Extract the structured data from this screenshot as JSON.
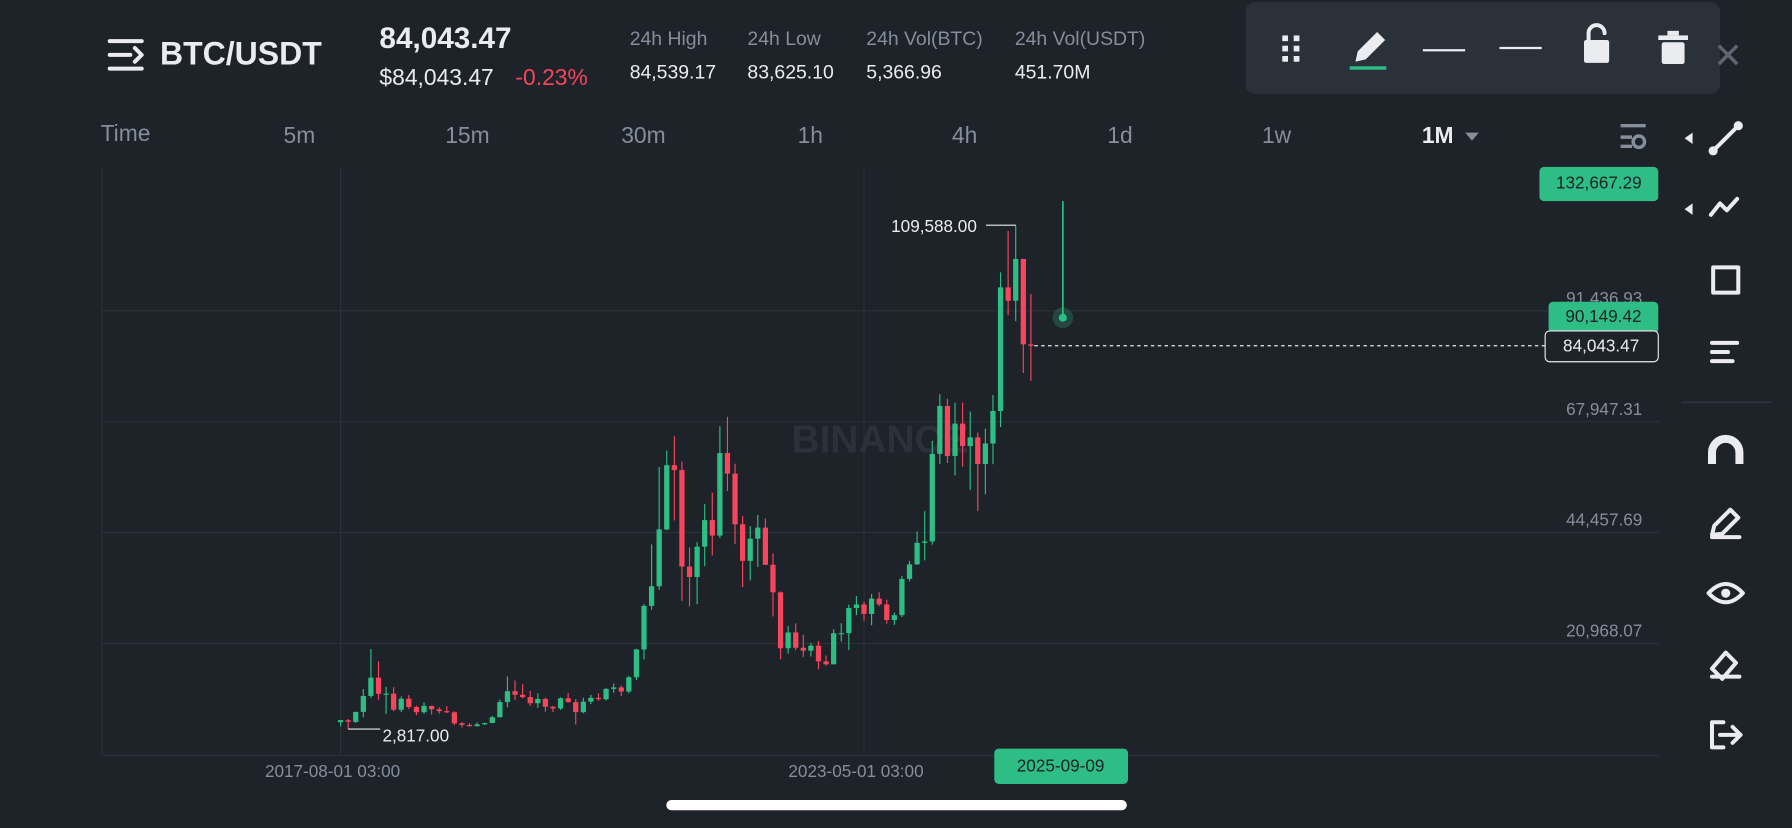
{
  "header": {
    "pair": "BTC/USDT",
    "last_price": "84,043.47",
    "fiat_price": "$84,043.47",
    "change": "-0.23%",
    "stats": [
      {
        "label": "24h High",
        "value": "84,539.17"
      },
      {
        "label": "24h Low",
        "value": "83,625.10"
      },
      {
        "label": "24h Vol(BTC)",
        "value": "5,366.96"
      },
      {
        "label": "24h Vol(USDT)",
        "value": "451.70M"
      }
    ]
  },
  "timeframes": {
    "label": "Time",
    "options": [
      "5m",
      "15m",
      "30m",
      "1h",
      "4h",
      "1d",
      "1w",
      "1M"
    ],
    "selected": "1M"
  },
  "chart_data": {
    "type": "candlestick",
    "watermark": "BINANCE",
    "categories": [
      "2017-08-01 03:00",
      null,
      null,
      null,
      null,
      null,
      null,
      null,
      null,
      null,
      null,
      null,
      null,
      null,
      null,
      null,
      null,
      null,
      null,
      null,
      null,
      null,
      null,
      null,
      null,
      null,
      null,
      null,
      null,
      null,
      null,
      null,
      null,
      null,
      null,
      null,
      null,
      null,
      null,
      null,
      null,
      null,
      null,
      null,
      null,
      null,
      null,
      null,
      null,
      null,
      null,
      null,
      null,
      null,
      null,
      null,
      null,
      null,
      null,
      null,
      null,
      null,
      null,
      null,
      null,
      null,
      null,
      null,
      null,
      "2023-05-01 03:00",
      null,
      null,
      null,
      null,
      null,
      null,
      null,
      null,
      null,
      null,
      null,
      null,
      null,
      null,
      null,
      null,
      null,
      null,
      null,
      null,
      null,
      null
    ],
    "open": [
      4261,
      4690,
      4340,
      6460,
      9838,
      13716,
      10285,
      10326,
      6922,
      9246,
      7494,
      6391,
      7730,
      7011,
      6626,
      6371,
      4041,
      3702,
      3434,
      3814,
      4103,
      5321,
      8555,
      10854,
      10085,
      9600,
      8293,
      9199,
      7546,
      7195,
      9352,
      8524,
      6410,
      8620,
      9448,
      9138,
      11335,
      11650,
      10776,
      13791,
      19695,
      28924,
      33092,
      45135,
      58740,
      57697,
      37254,
      35045,
      41461,
      47100,
      43821,
      61300,
      56950,
      46216,
      38466,
      43160,
      45510,
      37630,
      31801,
      19942,
      23296,
      20050,
      19423,
      20491,
      17165,
      16542,
      23125,
      23141,
      28465,
      29233,
      27210,
      30472,
      29232,
      25940,
      26962,
      34640,
      37724,
      42283,
      42580,
      61131,
      71280,
      60672,
      67540,
      62772,
      64628,
      58974,
      63327,
      70216,
      96408,
      93576,
      102429,
      84350
    ],
    "high": [
      4745,
      4939,
      6470,
      11300,
      19798,
      17176,
      11786,
      11700,
      9759,
      10020,
      7786,
      8507,
      7770,
      7410,
      7680,
      6600,
      4311,
      4069,
      4210,
      4140,
      5600,
      9074,
      13971,
      13130,
      12326,
      10905,
      10370,
      9505,
      7750,
      9578,
      10500,
      9188,
      9460,
      10067,
      10380,
      11444,
      12468,
      12050,
      14100,
      19863,
      29300,
      41950,
      58352,
      61844,
      64855,
      59500,
      41330,
      42448,
      50500,
      52920,
      67000,
      69000,
      59054,
      47990,
      45821,
      48189,
      47444,
      40023,
      31982,
      24668,
      25211,
      22800,
      21085,
      21480,
      18400,
      23960,
      25250,
      29184,
      31000,
      29820,
      31432,
      31804,
      30244,
      27483,
      35280,
      38450,
      44700,
      48970,
      63914,
      73777,
      72797,
      71980,
      71997,
      70079,
      65659,
      66496,
      73620,
      99588,
      108353,
      109588,
      102500,
      95000
    ],
    "low": [
      3400,
      2817,
      4110,
      5325,
      9380,
      9035,
      6000,
      6600,
      6430,
      7032,
      5750,
      6070,
      5880,
      6100,
      6205,
      3652,
      3156,
      3349,
      3373,
      3690,
      4067,
      5320,
      7440,
      9010,
      9320,
      7710,
      7300,
      6515,
      6435,
      6871,
      8445,
      3782,
      6150,
      8117,
      8833,
      8893,
      10518,
      9825,
      10375,
      13195,
      17572,
      28130,
      32296,
      44950,
      47045,
      30000,
      28805,
      29278,
      37332,
      39600,
      43283,
      53256,
      42000,
      32918,
      34322,
      37155,
      37578,
      26700,
      17622,
      18782,
      19520,
      18125,
      18190,
      15476,
      16256,
      16500,
      21351,
      19549,
      26942,
      25811,
      24800,
      28861,
      25166,
      24901,
      26538,
      34097,
      37615,
      38555,
      41884,
      59005,
      59191,
      56552,
      58402,
      53485,
      49000,
      52550,
      58946,
      66835,
      90500,
      89256,
      78258,
      76606
    ],
    "close": [
      4724,
      4378,
      6463,
      9838,
      13716,
      10285,
      10326,
      6923,
      9246,
      7494,
      6391,
      7730,
      7011,
      6626,
      6371,
      4041,
      3702,
      3434,
      3814,
      4103,
      5320,
      8555,
      10855,
      10085,
      9600,
      8293,
      9199,
      7546,
      7195,
      9352,
      8524,
      6410,
      8620,
      9448,
      9138,
      11335,
      11650,
      10776,
      13791,
      19695,
      28924,
      33092,
      45135,
      58740,
      57694,
      37253,
      35045,
      41462,
      47100,
      43824,
      61300,
      56950,
      46216,
      38466,
      43160,
      45510,
      37630,
      31801,
      19942,
      23293,
      20050,
      19423,
      20491,
      17164,
      16542,
      23125,
      23141,
      28465,
      29233,
      27210,
      30472,
      29232,
      25941,
      26962,
      34639,
      37724,
      42283,
      42580,
      61130,
      71280,
      60672,
      67540,
      62772,
      64628,
      58974,
      63327,
      70215,
      96407,
      93576,
      102429,
      84350,
      84043.47
    ],
    "up_color": "#2ebd85",
    "down_color": "#f6465d",
    "ylim": [
      -2764,
      121707
    ],
    "yticks": [
      {
        "value": 20968.07,
        "label": "20,968.07"
      },
      {
        "value": 44457.69,
        "label": "44,457.69"
      },
      {
        "value": 67947.31,
        "label": "67,947.31"
      },
      {
        "value": 91436.93,
        "label": "91,436.93"
      }
    ],
    "high_marker": {
      "value": 109588,
      "label": "109,588.00"
    },
    "low_marker": {
      "value": 2817,
      "label": "2,817.00"
    },
    "last_price_marker": {
      "value": 84043.47,
      "label": "84,043.47"
    },
    "drawing": {
      "top_label": "132,667.29",
      "point_label": "90,149.42",
      "date_label": "2025-09-09"
    }
  }
}
